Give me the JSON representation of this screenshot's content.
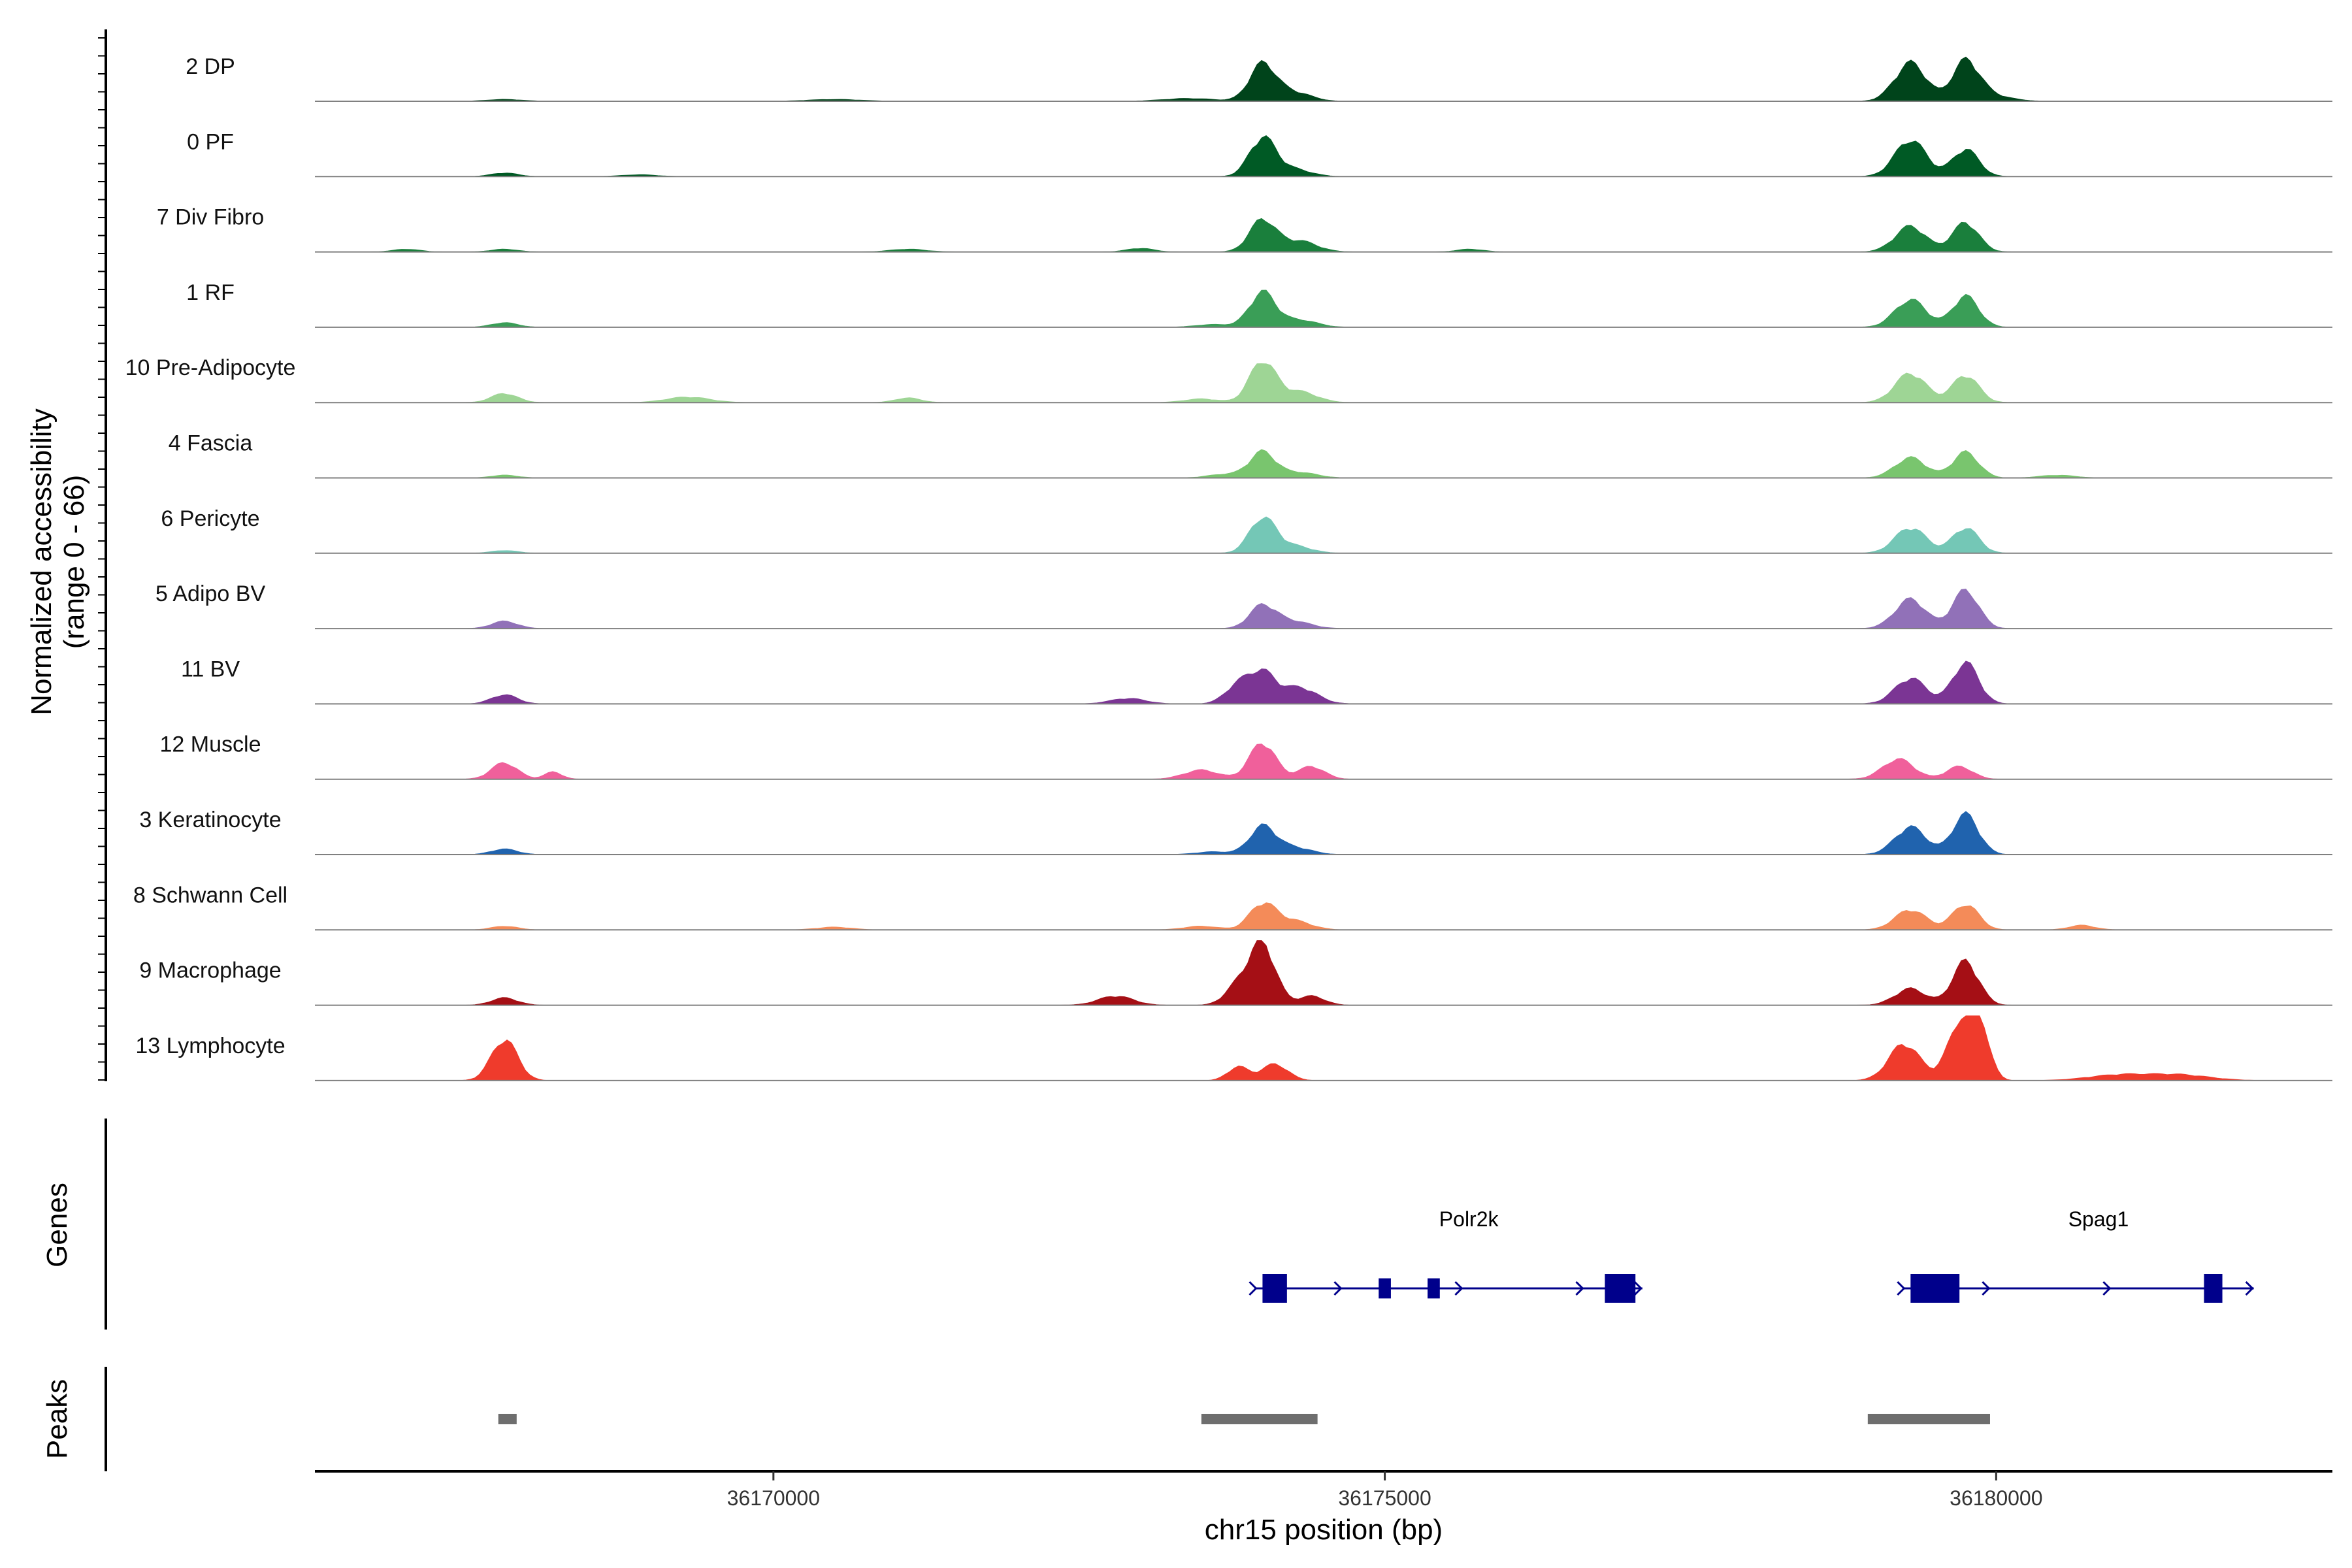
{
  "chart_data": {
    "type": "area",
    "title": "",
    "ylabel": "Normalized accessibility\n(range 0 - 66)",
    "xlabel": "chr15 position (bp)",
    "xlim": [
      36166250,
      36182750
    ],
    "ylim": [
      0,
      66
    ],
    "x_ticks": [
      36170000,
      36175000,
      36180000
    ],
    "x_tick_labels": [
      "36170000",
      "36175000",
      "36180000"
    ],
    "grid": false,
    "series": [
      {
        "name": "2 DP",
        "color": "#00441b",
        "peaks": [
          [
            36167800,
            2,
            200
          ],
          [
            36170500,
            2,
            300
          ],
          [
            36173400,
            3,
            300
          ],
          [
            36174000,
            40,
            150
          ],
          [
            36174250,
            10,
            200
          ],
          [
            36179300,
            42,
            180
          ],
          [
            36179750,
            40,
            150
          ],
          [
            36179900,
            8,
            250
          ]
        ]
      },
      {
        "name": "0 PF",
        "color": "#005a25",
        "peaks": [
          [
            36167800,
            4,
            150
          ],
          [
            36168900,
            2,
            200
          ],
          [
            36174000,
            42,
            150
          ],
          [
            36174250,
            8,
            200
          ],
          [
            36179300,
            40,
            180
          ],
          [
            36179750,
            30,
            150
          ]
        ]
      },
      {
        "name": "7 Div Fibro",
        "color": "#1a7f3c",
        "peaks": [
          [
            36167000,
            3,
            150
          ],
          [
            36167800,
            3,
            150
          ],
          [
            36171100,
            3,
            200
          ],
          [
            36173000,
            4,
            150
          ],
          [
            36174000,
            35,
            150
          ],
          [
            36174300,
            12,
            200
          ],
          [
            36175700,
            3,
            150
          ],
          [
            36179300,
            28,
            180
          ],
          [
            36179750,
            32,
            150
          ]
        ]
      },
      {
        "name": "1 RF",
        "color": "#3a9e57",
        "peaks": [
          [
            36167800,
            5,
            150
          ],
          [
            36173600,
            3,
            200
          ],
          [
            36174000,
            38,
            150
          ],
          [
            36174300,
            8,
            200
          ],
          [
            36179300,
            30,
            180
          ],
          [
            36179750,
            34,
            150
          ]
        ]
      },
      {
        "name": "10 Pre-Adipocyte",
        "color": "#9ed595",
        "peaks": [
          [
            36167800,
            10,
            150
          ],
          [
            36169300,
            6,
            250
          ],
          [
            36171100,
            5,
            150
          ],
          [
            36173500,
            4,
            200
          ],
          [
            36174000,
            45,
            150
          ],
          [
            36174300,
            12,
            200
          ],
          [
            36179300,
            32,
            180
          ],
          [
            36179750,
            30,
            150
          ]
        ]
      },
      {
        "name": "4 Fascia",
        "color": "#79c56e",
        "peaks": [
          [
            36167800,
            3,
            150
          ],
          [
            36173700,
            4,
            200
          ],
          [
            36174000,
            28,
            150
          ],
          [
            36174300,
            6,
            200
          ],
          [
            36179300,
            22,
            180
          ],
          [
            36179750,
            28,
            150
          ],
          [
            36180500,
            3,
            200
          ]
        ]
      },
      {
        "name": "6 Pericyte",
        "color": "#74c7b6",
        "peaks": [
          [
            36167800,
            3,
            150
          ],
          [
            36174000,
            38,
            150
          ],
          [
            36174250,
            8,
            200
          ],
          [
            36179300,
            28,
            180
          ],
          [
            36179750,
            28,
            150
          ]
        ]
      },
      {
        "name": "5 Adipo BV",
        "color": "#9171b8",
        "peaks": [
          [
            36167800,
            8,
            150
          ],
          [
            36174000,
            25,
            150
          ],
          [
            36174250,
            8,
            200
          ],
          [
            36179300,
            32,
            180
          ],
          [
            36179750,
            42,
            150
          ]
        ]
      },
      {
        "name": "11 BV",
        "color": "#7b3594",
        "peaks": [
          [
            36167800,
            10,
            150
          ],
          [
            36172900,
            6,
            200
          ],
          [
            36173800,
            20,
            150
          ],
          [
            36174000,
            32,
            150
          ],
          [
            36174300,
            18,
            200
          ],
          [
            36179300,
            28,
            180
          ],
          [
            36179750,
            45,
            150
          ]
        ]
      },
      {
        "name": "12 Muscle",
        "color": "#f0609b",
        "peaks": [
          [
            36167800,
            18,
            150
          ],
          [
            36168200,
            8,
            100
          ],
          [
            36173500,
            10,
            200
          ],
          [
            36174000,
            40,
            150
          ],
          [
            36174400,
            14,
            150
          ],
          [
            36179200,
            22,
            180
          ],
          [
            36179700,
            14,
            150
          ]
        ]
      },
      {
        "name": "3 Keratinocyte",
        "color": "#2063ae",
        "peaks": [
          [
            36167800,
            6,
            150
          ],
          [
            36173600,
            3,
            200
          ],
          [
            36174000,
            30,
            150
          ],
          [
            36174250,
            8,
            200
          ],
          [
            36179300,
            30,
            180
          ],
          [
            36179750,
            44,
            150
          ]
        ]
      },
      {
        "name": "8 Schwann Cell",
        "color": "#f48b59",
        "peaks": [
          [
            36167800,
            4,
            150
          ],
          [
            36170500,
            3,
            200
          ],
          [
            36173500,
            4,
            200
          ],
          [
            36174000,
            28,
            150
          ],
          [
            36174250,
            10,
            200
          ],
          [
            36179300,
            22,
            180
          ],
          [
            36179750,
            28,
            150
          ],
          [
            36180700,
            5,
            150
          ]
        ]
      },
      {
        "name": "9 Macrophage",
        "color": "#a50f15",
        "peaks": [
          [
            36167800,
            8,
            150
          ],
          [
            36172800,
            10,
            200
          ],
          [
            36173800,
            20,
            150
          ],
          [
            36174000,
            66,
            150
          ],
          [
            36174400,
            10,
            150
          ],
          [
            36179300,
            18,
            180
          ],
          [
            36179750,
            48,
            150
          ]
        ]
      },
      {
        "name": "13 Lymphocyte",
        "color": "#ef3b2c",
        "peaks": [
          [
            36167800,
            45,
            150
          ],
          [
            36173800,
            15,
            120
          ],
          [
            36174100,
            18,
            150
          ],
          [
            36179250,
            40,
            180
          ],
          [
            36179700,
            55,
            150
          ],
          [
            36179850,
            66,
            120
          ],
          [
            36181000,
            6,
            350
          ],
          [
            36181500,
            6,
            350
          ]
        ]
      }
    ],
    "genes": [
      {
        "name": "Polr2k",
        "strand": "+",
        "start": 36174000,
        "end": 36177000,
        "exons": [
          [
            36174000,
            36174200,
            1
          ],
          [
            36174950,
            36175050,
            0.7
          ],
          [
            36175350,
            36175450,
            0.7
          ],
          [
            36176800,
            36177050,
            1
          ]
        ]
      },
      {
        "name": "Spag1",
        "strand": "+",
        "start": 36179300,
        "end": 36182000,
        "exons": [
          [
            36179300,
            36179700,
            1
          ],
          [
            36181700,
            36181850,
            1
          ]
        ]
      }
    ],
    "peaks_track": [
      [
        36167750,
        36167900
      ],
      [
        36173500,
        36174450
      ],
      [
        36178950,
        36179950
      ]
    ],
    "panel_labels": {
      "genes": "Genes",
      "peaks": "Peaks"
    }
  }
}
